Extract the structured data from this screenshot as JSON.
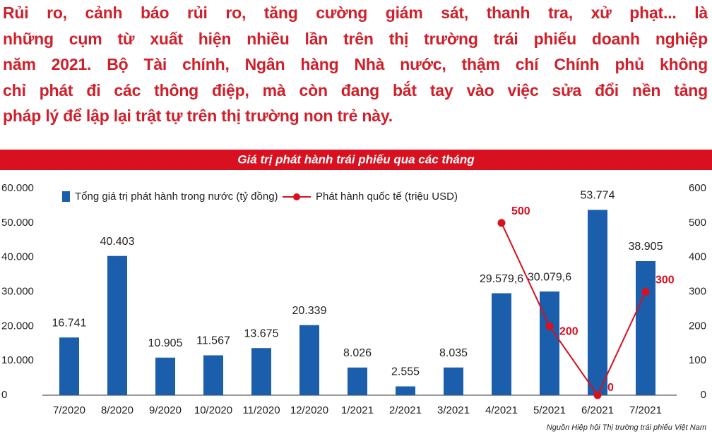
{
  "intro": [
    "Rủi ro, cảnh báo rủi ro, tăng cường giám sát, thanh tra, xử phạt... là",
    "những cụm từ xuất hiện nhiều lần trên thị trường trái phiếu doanh nghiệp",
    "năm 2021. Bộ Tài chính, Ngân hàng Nhà nước, thậm chí Chính phủ không",
    "chỉ phát đi các thông điệp, mà còn đang bắt tay vào việc sửa đổi nền tảng",
    "pháp lý để lập lại trật tự trên thị trường non trẻ này."
  ],
  "chart_data": {
    "type": "bar-line",
    "title": "Giá trị phát hành trái phiếu qua các tháng",
    "categories": [
      "7/2020",
      "8/2020",
      "9/2020",
      "10/2020",
      "11/2020",
      "12/2020",
      "1/2021",
      "2/2021",
      "3/2021",
      "4/2021",
      "5/2021",
      "6/2021",
      "7/2021"
    ],
    "series": [
      {
        "name": "Tổng giá trị phát hành trong nước (tỷ đồng)",
        "type": "bar",
        "color": "#1b5eab",
        "values": [
          16741,
          40403,
          10905,
          11567,
          13675,
          20339,
          8026,
          2555,
          8035,
          29579.6,
          30079.6,
          53774,
          38905
        ],
        "value_labels": [
          "16.741",
          "40.403",
          "10.905",
          "11.567",
          "13.675",
          "20.339",
          "8.026",
          "2.555",
          "8.035",
          "29.579,6",
          "30.079,6",
          "53.774",
          "38.905"
        ]
      },
      {
        "name": "Phát hành quốc tế (triệu USD)",
        "type": "line",
        "axis": "y2",
        "color": "#d9101f",
        "values": [
          null,
          null,
          null,
          null,
          null,
          null,
          null,
          null,
          null,
          500,
          200,
          0,
          300
        ],
        "value_labels": [
          null,
          null,
          null,
          null,
          null,
          null,
          null,
          null,
          null,
          "500",
          "200",
          "0",
          "300"
        ]
      }
    ],
    "ylim": [
      0,
      60000
    ],
    "yticks": [
      0,
      {
        "value": 10000,
        "label": "10.000"
      },
      {
        "value": 20000,
        "label": "20.000"
      },
      {
        "value": 30000,
        "label": "30.000"
      },
      {
        "value": 40000,
        "label": "40.000"
      },
      {
        "value": 50000,
        "label": "50.000"
      },
      {
        "value": 60000,
        "label": "60.000"
      }
    ],
    "y2lim": [
      0,
      600
    ],
    "y2ticks": [
      0,
      100,
      200,
      300,
      400,
      500,
      600
    ],
    "source": "Nguồn Hiệp hội Thị trường trái phiếu Việt Nam"
  }
}
